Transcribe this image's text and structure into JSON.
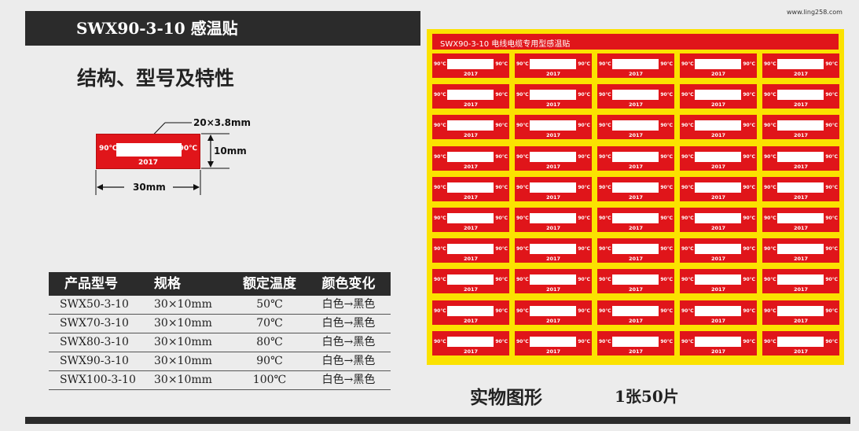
{
  "header": {
    "title": "SWX90-3-10 感温贴",
    "watermark": "www.ling258.com"
  },
  "section": {
    "heading": "结构、型号及特性"
  },
  "diagram": {
    "temp_left": "90℃",
    "temp_right": "90℃",
    "year": "2017",
    "window_dim": "20×3.8mm",
    "height_dim": "10mm",
    "width_dim": "30mm"
  },
  "spec_table": {
    "headers": [
      "产品型号",
      "规格",
      "额定温度",
      "颜色变化"
    ],
    "rows": [
      [
        "SWX50-3-10",
        "30×10mm",
        "50℃",
        "白色→黑色"
      ],
      [
        "SWX70-3-10",
        "30×10mm",
        "70℃",
        "白色→黑色"
      ],
      [
        "SWX80-3-10",
        "30×10mm",
        "80℃",
        "白色→黑色"
      ],
      [
        "SWX90-3-10",
        "30×10mm",
        "90℃",
        "白色→黑色"
      ],
      [
        "SWX100-3-10",
        "30×10mm",
        "100℃",
        "白色→黑色"
      ]
    ]
  },
  "sheet": {
    "title": "SWX90-3-10 电线电缆专用型感温贴",
    "rows": 10,
    "cols": 5,
    "sticker": {
      "temp": "90℃",
      "year": "2017"
    }
  },
  "captions": {
    "photo": "实物图形",
    "quantity": "1张50片"
  },
  "colors": {
    "sticker_red": "#e0151a",
    "sheet_yellow": "#fbe200",
    "bar_dark": "#2b2b2b"
  }
}
